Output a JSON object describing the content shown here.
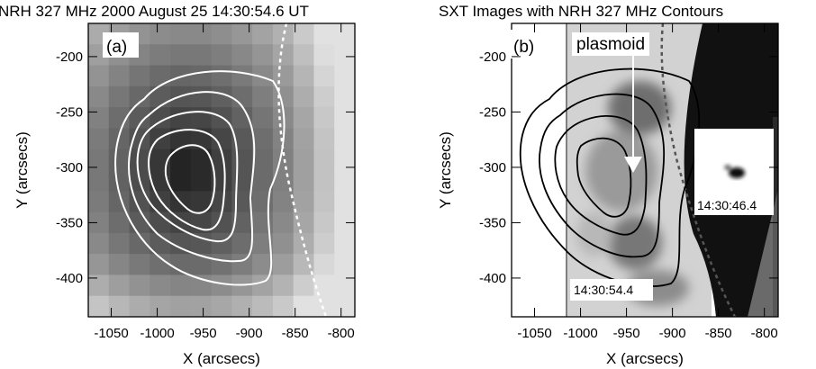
{
  "figure": {
    "title_left": "NRH 327 MHz 2000 August 25 14:30:54.6 UT",
    "title_right": "SXT Images with NRH 327 MHz Contours",
    "panel_a_label": "(a)",
    "panel_b_label": "(b)",
    "plasmoid_label": "plasmoid",
    "inset_time": "14:30:46.4",
    "main_time": "14:30:54.4",
    "colors": {
      "background": "#ffffff",
      "contour_a": "#ffffff",
      "contour_b": "#000000",
      "limb": "#ffffff"
    }
  },
  "chart_data": [
    {
      "type": "heatmap",
      "panel": "a",
      "title": "NRH 327 MHz 2000 August 25 14:30:54.6 UT",
      "xlabel": "X (arcsecs)",
      "ylabel": "Y (arcsecs)",
      "xlim": [
        -1075,
        -785
      ],
      "ylim": [
        -435,
        -170
      ],
      "xticks": [
        "-1050",
        "-1000",
        "-950",
        "-900",
        "-850",
        "-800"
      ],
      "yticks": [
        "-200",
        "-250",
        "-300",
        "-350",
        "-400"
      ],
      "grid": false,
      "contours": 5,
      "limb_line": "dashed white"
    },
    {
      "type": "heatmap",
      "panel": "b",
      "title": "SXT Images with NRH 327 MHz Contours",
      "xlabel": "X (arcsecs)",
      "ylabel": "Y (arcsecs)",
      "xlim": [
        -1075,
        -785
      ],
      "ylim": [
        -435,
        -170
      ],
      "xticks": [
        "-1050",
        "-1000",
        "-950",
        "-900",
        "-850",
        "-800"
      ],
      "yticks": [
        "-200",
        "-250",
        "-300",
        "-350",
        "-400"
      ],
      "grid": false,
      "contours": 4,
      "annotations": [
        "plasmoid",
        "14:30:46.4",
        "14:30:54.4"
      ]
    }
  ]
}
